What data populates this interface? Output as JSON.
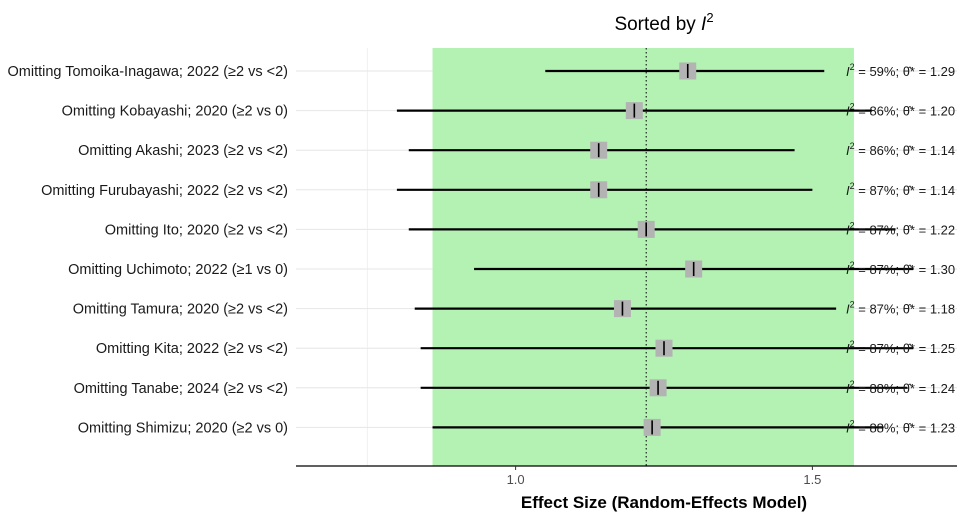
{
  "chart_data": {
    "type": "forest",
    "title_prefix": "Sorted by ",
    "title_symbol": "I",
    "title_sup": "2",
    "xlabel": "Effect Size (Random-Effects Model)",
    "xlim": [
      0.63,
      1.87
    ],
    "xticks": [
      1.0,
      1.5
    ],
    "xtick_labels": [
      "1.0",
      "1.5"
    ],
    "pooled_estimate": 1.22,
    "pooled_ci": [
      0.86,
      1.57
    ],
    "ci_band_color": "#b3f2b3",
    "marker_color": "#b3b3b3",
    "stat_i2_symbol": "I",
    "stat_i2_sup": "2",
    "stat_theta_symbol": "θ̂*",
    "rows": [
      {
        "label": "Omitting Tomoika-Inagawa; 2022 (≥2 vs <2)",
        "est": 1.29,
        "lo": 1.05,
        "hi": 1.52,
        "stat_text": " = 59%; ",
        "theta_text": " = 1.29"
      },
      {
        "label": "Omitting Kobayashi; 2020 (≥2 vs 0)",
        "est": 1.2,
        "lo": 0.8,
        "hi": 1.6,
        "stat_text": " = 86%; ",
        "theta_text": " = 1.20"
      },
      {
        "label": "Omitting Akashi; 2023 (≥2 vs <2)",
        "est": 1.14,
        "lo": 0.82,
        "hi": 1.47,
        "stat_text": " = 86%; ",
        "theta_text": " = 1.14"
      },
      {
        "label": "Omitting Furubayashi; 2022 (≥2 vs <2)",
        "est": 1.14,
        "lo": 0.8,
        "hi": 1.5,
        "stat_text": " = 87%; ",
        "theta_text": " = 1.14"
      },
      {
        "label": "Omitting Ito; 2020  (≥2 vs <2)",
        "est": 1.22,
        "lo": 0.82,
        "hi": 1.64,
        "stat_text": " = 87%; ",
        "theta_text": " = 1.22"
      },
      {
        "label": "Omitting Uchimoto; 2022  (≥1 vs 0)",
        "est": 1.3,
        "lo": 0.93,
        "hi": 1.67,
        "stat_text": " = 87%; ",
        "theta_text": " = 1.30"
      },
      {
        "label": "Omitting Tamura; 2020 (≥2 vs <2)",
        "est": 1.18,
        "lo": 0.83,
        "hi": 1.54,
        "stat_text": " = 87%; ",
        "theta_text": " = 1.18"
      },
      {
        "label": "Omitting Kita; 2022 (≥2 vs <2)",
        "est": 1.25,
        "lo": 0.84,
        "hi": 1.67,
        "stat_text": " = 87%; ",
        "theta_text": " = 1.25"
      },
      {
        "label": "Omitting Tanabe; 2024 (≥2 vs <2)",
        "est": 1.24,
        "lo": 0.84,
        "hi": 1.66,
        "stat_text": " = 88%; ",
        "theta_text": " = 1.24"
      },
      {
        "label": "Omitting Shimizu; 2020  (≥2 vs 0)",
        "est": 1.23,
        "lo": 0.86,
        "hi": 1.62,
        "stat_text": " = 88%; ",
        "theta_text": " = 1.23"
      }
    ]
  }
}
